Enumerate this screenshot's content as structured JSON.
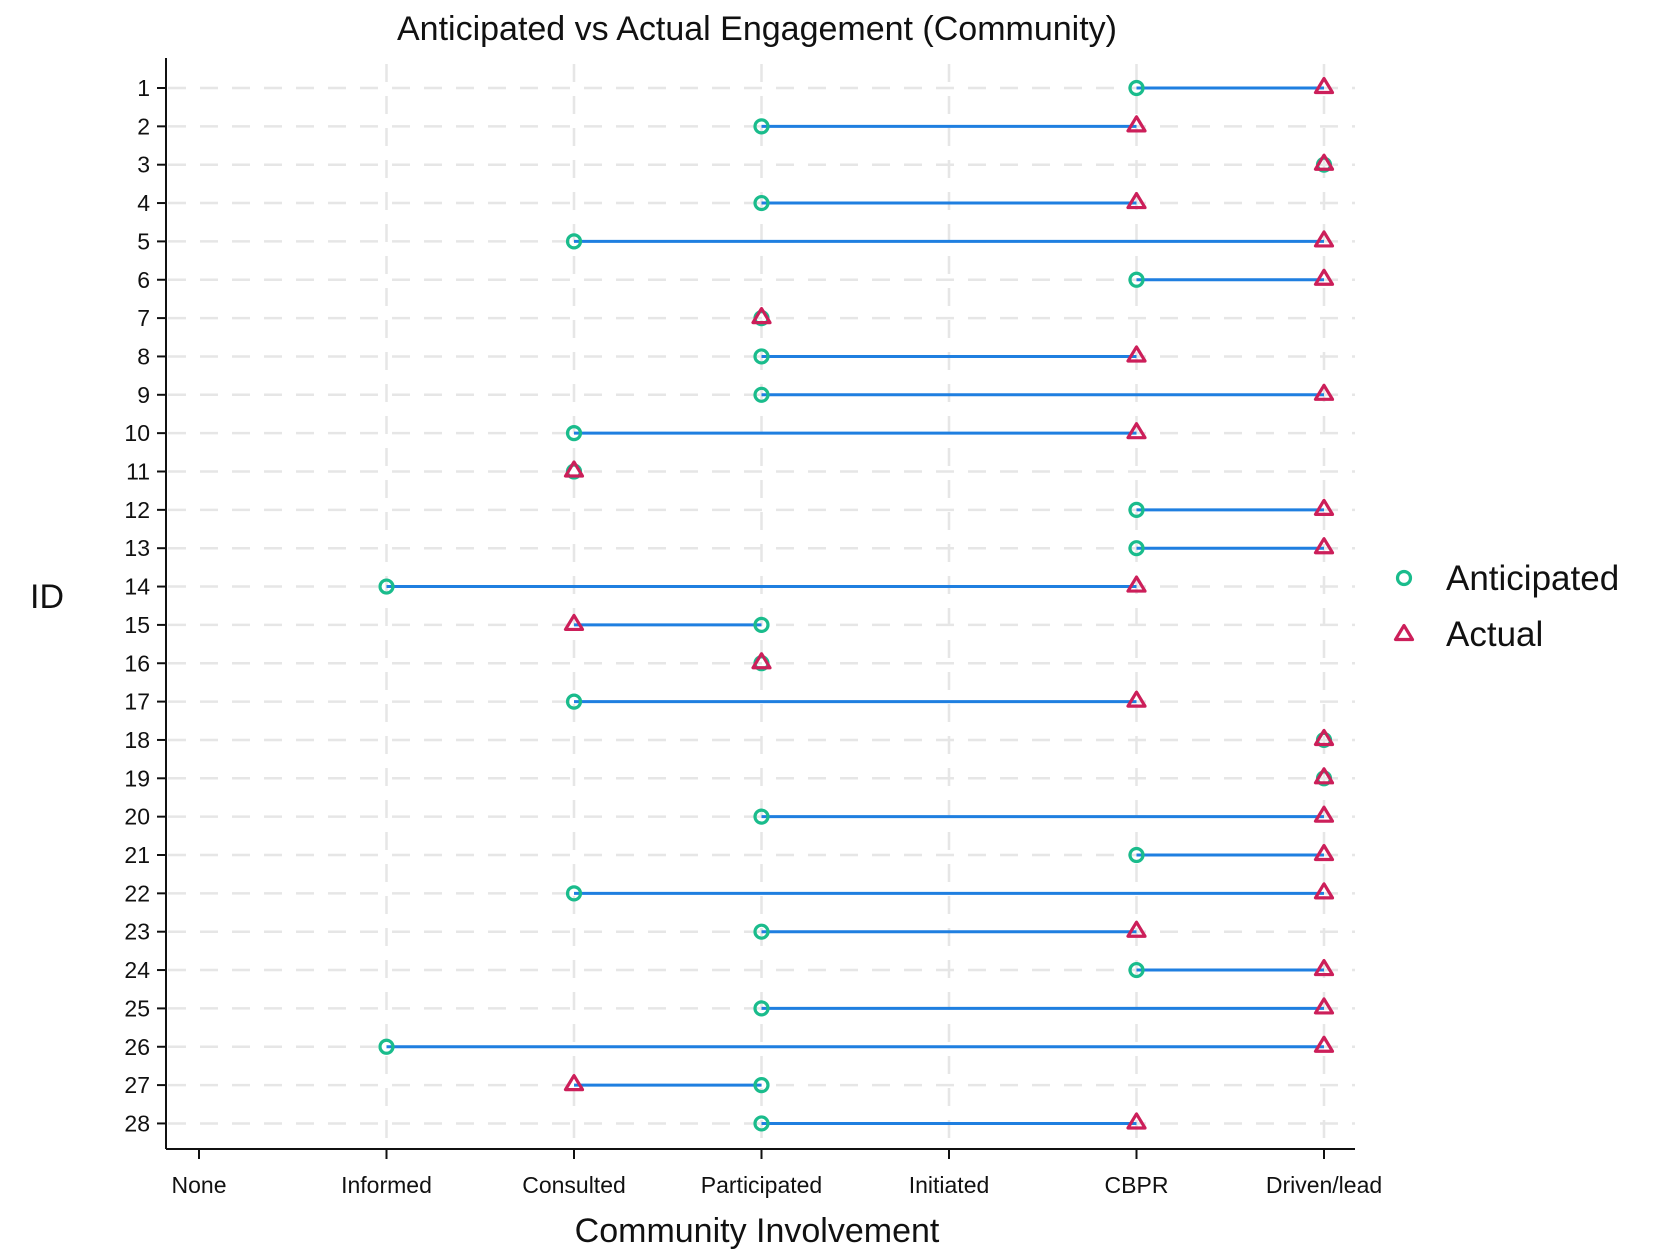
{
  "chart_data": {
    "type": "dumbbell",
    "title": "Anticipated vs Actual Engagement (Community)",
    "xlabel": "Community Involvement",
    "ylabel": "ID",
    "x_categories": [
      "None",
      "Informed",
      "Consulted",
      "Participated",
      "Initiated",
      "CBPR",
      "Driven/lead"
    ],
    "ids": [
      1,
      2,
      3,
      4,
      5,
      6,
      7,
      8,
      9,
      10,
      11,
      12,
      13,
      14,
      15,
      16,
      17,
      18,
      19,
      20,
      21,
      22,
      23,
      24,
      25,
      26,
      27,
      28
    ],
    "series": [
      {
        "name": "Anticipated",
        "marker": "circle",
        "color": "#1abc8c",
        "values": [
          "CBPR",
          "Participated",
          "Driven/lead",
          "Participated",
          "Consulted",
          "CBPR",
          "Participated",
          "Participated",
          "Participated",
          "Consulted",
          "Consulted",
          "CBPR",
          "CBPR",
          "Informed",
          "Participated",
          "Participated",
          "Consulted",
          "Driven/lead",
          "Driven/lead",
          "Participated",
          "CBPR",
          "Consulted",
          "Participated",
          "CBPR",
          "Participated",
          "Informed",
          "Participated",
          "Participated"
        ]
      },
      {
        "name": "Actual",
        "marker": "triangle",
        "color": "#cc1f5a",
        "values": [
          "Driven/lead",
          "CBPR",
          "Driven/lead",
          "CBPR",
          "Driven/lead",
          "Driven/lead",
          "Participated",
          "CBPR",
          "Driven/lead",
          "CBPR",
          "Consulted",
          "Driven/lead",
          "Driven/lead",
          "CBPR",
          "Consulted",
          "Participated",
          "CBPR",
          "Driven/lead",
          "Driven/lead",
          "Driven/lead",
          "Driven/lead",
          "Driven/lead",
          "CBPR",
          "Driven/lead",
          "Driven/lead",
          "Driven/lead",
          "Consulted",
          "CBPR"
        ]
      }
    ],
    "connector_color": "#1f7fe0",
    "grid": true,
    "legend_position": "right"
  }
}
